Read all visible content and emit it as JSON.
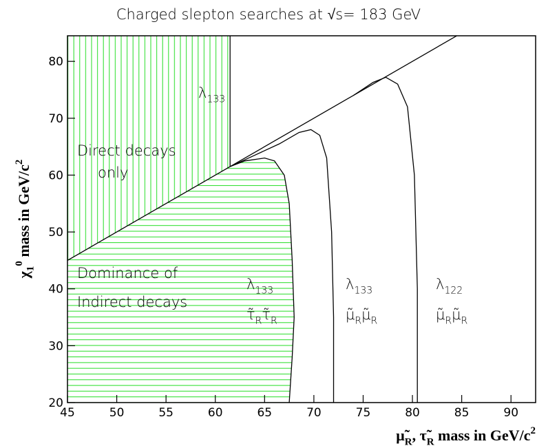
{
  "chart_data": {
    "type": "line",
    "title": "Charged slepton searches at √s= 183 GeV",
    "x_label": {
      "parts": [
        {
          "text": "μ̃"
        },
        {
          "text": "R",
          "style": "sub"
        },
        {
          "text": ", τ̃"
        },
        {
          "text": "R",
          "style": "sub"
        },
        {
          "text": " mass in GeV/c"
        },
        {
          "text": "2",
          "style": "sup"
        }
      ]
    },
    "y_label": {
      "parts": [
        {
          "text": "χ"
        },
        {
          "text": "1",
          "style": "sub"
        },
        {
          "text": "0",
          "style": "sup"
        },
        {
          "text": "  mass in GeV/c"
        },
        {
          "text": "2",
          "style": "sup"
        }
      ]
    },
    "xlim": [
      45,
      92.5
    ],
    "ylim": [
      20,
      84.5
    ],
    "xticks": [
      45,
      50,
      55,
      60,
      65,
      70,
      75,
      80,
      85,
      90
    ],
    "yticks": [
      20,
      30,
      40,
      50,
      60,
      70,
      80
    ],
    "regions": [
      {
        "hatch": "vertical",
        "color": "#22dd22",
        "x": [
          45,
          45,
          61.5,
          61.5
        ],
        "values": [
          45,
          84.5,
          84.5,
          61.5
        ]
      },
      {
        "hatch": "horizontal",
        "color": "#22dd22",
        "x": [
          45,
          45,
          61.5,
          63,
          65,
          66,
          67,
          67.5,
          67.8,
          68,
          67.8,
          67.5
        ],
        "values": [
          20,
          45,
          61.5,
          62.5,
          63,
          62.5,
          60,
          55,
          45,
          35,
          28,
          20
        ]
      }
    ],
    "series": [
      {
        "color": "#000000",
        "x": [
          45,
          85
        ],
        "values": [
          45,
          85
        ]
      },
      {
        "color": "#000000",
        "x": [
          61.5,
          61.5
        ],
        "values": [
          61.5,
          84.5
        ]
      },
      {
        "color": "#000000",
        "x": [
          61.5,
          63,
          65,
          66,
          67,
          67.5,
          67.8,
          68,
          67.8,
          67.5
        ],
        "values": [
          61.5,
          62.5,
          63,
          62.5,
          60,
          55,
          45,
          35,
          28,
          20
        ]
      },
      {
        "color": "#000000",
        "x": [
          61.5,
          64,
          66.5,
          68.5,
          69.7,
          70.6,
          71.3,
          71.8,
          72,
          72
        ],
        "values": [
          61.5,
          63.5,
          65.5,
          67.5,
          68,
          67,
          63,
          50,
          35,
          20
        ]
      },
      {
        "color": "#000000",
        "x": [
          74,
          76,
          77.3,
          78.5,
          79.5,
          80.2,
          80.5,
          80.5
        ],
        "values": [
          74,
          76.3,
          77.2,
          76,
          72,
          60,
          40,
          20
        ]
      }
    ],
    "annotations": [
      {
        "parts": [
          {
            "text": "λ"
          },
          {
            "text": "133",
            "style": "sub"
          }
        ]
      },
      {
        "parts": [
          {
            "text": "Direct decays"
          }
        ]
      },
      {
        "parts": [
          {
            "text": "only"
          }
        ]
      },
      {
        "parts": [
          {
            "text": "Dominance of"
          }
        ]
      },
      {
        "parts": [
          {
            "text": "Indirect decays"
          }
        ]
      },
      {
        "parts": [
          {
            "text": "λ"
          },
          {
            "text": "133",
            "style": "sub"
          }
        ]
      },
      {
        "parts": [
          {
            "text": "τ̃"
          },
          {
            "text": "R",
            "style": "sub"
          },
          {
            "text": "τ̃"
          },
          {
            "text": "R",
            "style": "sub"
          }
        ]
      },
      {
        "parts": [
          {
            "text": "λ"
          },
          {
            "text": "133",
            "style": "sub"
          }
        ]
      },
      {
        "parts": [
          {
            "text": "μ̃"
          },
          {
            "text": "R",
            "style": "sub"
          },
          {
            "text": "μ̃"
          },
          {
            "text": "R",
            "style": "sub"
          }
        ]
      },
      {
        "parts": [
          {
            "text": "λ"
          },
          {
            "text": "122",
            "style": "sub"
          }
        ]
      },
      {
        "parts": [
          {
            "text": "μ̃"
          },
          {
            "text": "R",
            "style": "sub"
          },
          {
            "text": "μ̃"
          },
          {
            "text": "R",
            "style": "sub"
          }
        ]
      }
    ]
  }
}
